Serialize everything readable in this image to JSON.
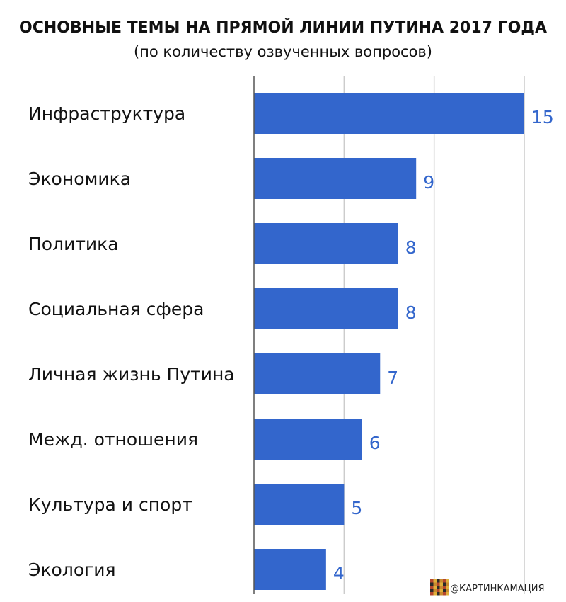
{
  "chart_data": {
    "type": "bar",
    "orientation": "horizontal",
    "title": "ОСНОВНЫЕ ТЕМЫ НА ПРЯМОЙ ЛИНИИ ПУТИНА 2017 ГОДА",
    "subtitle": "(по количеству озвученных вопросов)",
    "categories": [
      "Инфраструктура",
      "Экономика",
      "Политика",
      "Социальная сфера",
      "Личная жизнь Путина",
      "Межд. отношения",
      "Культура и спорт",
      "Экология"
    ],
    "values": [
      15,
      9,
      8,
      8,
      7,
      6,
      5,
      4
    ],
    "xlim": [
      0,
      15
    ],
    "grid": true,
    "data_labels": true,
    "legend": "none"
  },
  "colors": {
    "bar": "#3366cc",
    "value_label": "#3366cc",
    "grid": "#cccccc",
    "axis": "#555555"
  },
  "watermark": {
    "text": "@КАРТИНКАМАЦИЯ",
    "icon": "pixel-logo-icon"
  }
}
